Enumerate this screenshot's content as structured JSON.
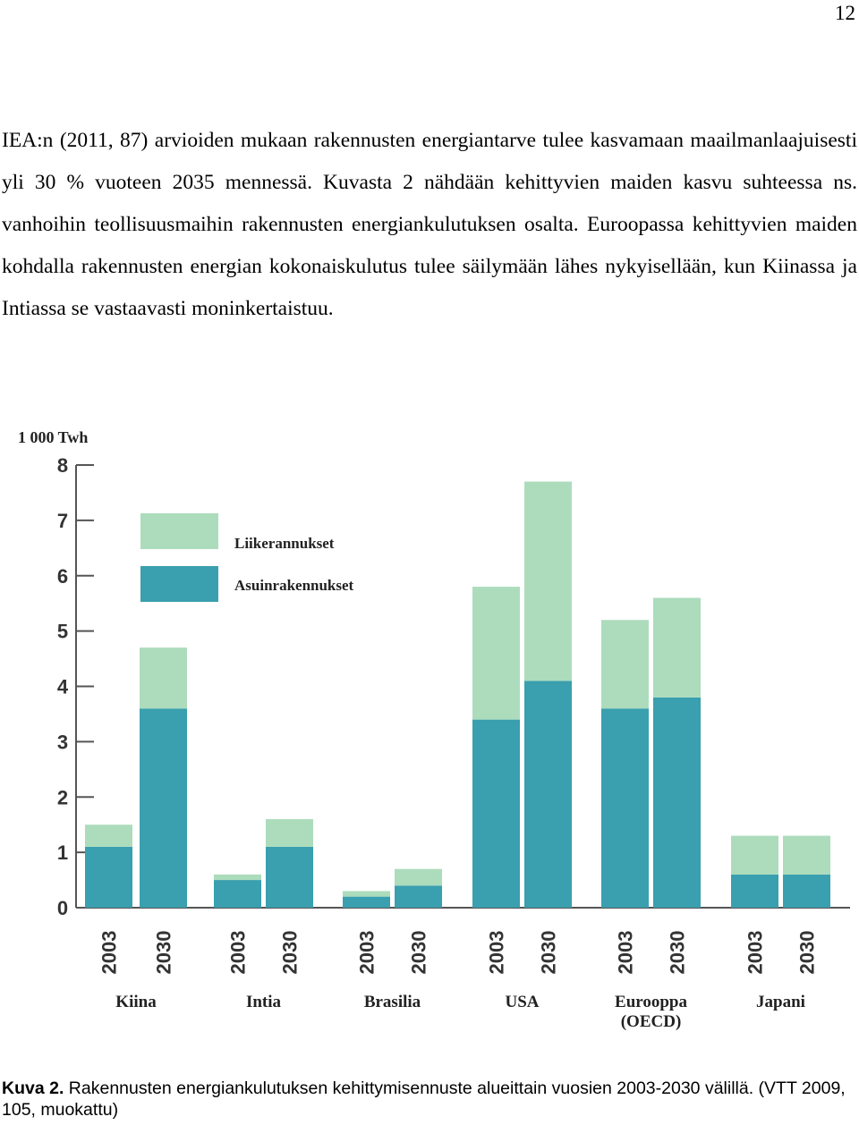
{
  "page_number": "12",
  "paragraph": "IEA:n (2011, 87) arvioiden mukaan rakennusten energiantarve tulee kasvamaan maailmanlaajuisesti yli 30 % vuoteen 2035 mennessä. Kuvasta 2 nähdään kehittyvien maiden kasvu suhteessa ns. vanhoihin teollisuusmaihin rakennusten energiankulutuksen osalta. Euroopassa kehittyvien maiden kohdalla rakennusten energian kokonaiskulutus tulee säilymään lähes nykyisellään, kun Kiinassa ja Intiassa se vastaavasti moninkertaistuu.",
  "chart_data": {
    "type": "stacked-bar",
    "y_label": "1 000 Twh",
    "categories": [
      "2003",
      "2030",
      "2003",
      "2030",
      "2003",
      "2030",
      "2003",
      "2030",
      "2003",
      "2030",
      "2003",
      "2030"
    ],
    "groups": [
      "Kiina",
      "Intia",
      "Brasilia",
      "USA",
      "Eurooppa (OECD)",
      "Japani"
    ],
    "series": [
      {
        "name": "Asuinrakennukset",
        "color": "#3a9fae",
        "values": [
          1.1,
          3.6,
          0.5,
          1.1,
          0.2,
          0.4,
          3.4,
          4.1,
          3.6,
          3.8,
          0.6,
          0.6
        ]
      },
      {
        "name": "Liikerannukset",
        "color": "#acdcbc",
        "values": [
          0.4,
          1.1,
          0.1,
          0.5,
          0.1,
          0.3,
          2.4,
          3.6,
          1.6,
          1.8,
          0.7,
          0.7
        ]
      }
    ],
    "ylim": [
      0,
      8
    ],
    "yticks": [
      0,
      1,
      2,
      3,
      4,
      5,
      6,
      7,
      8
    ]
  },
  "caption": {
    "label": "Kuva 2.",
    "text": "Rakennusten energiankulutuksen kehittymisennuste alueittain vuosien 2003-2030 välillä. (VTT 2009, 105, muokattu)"
  }
}
